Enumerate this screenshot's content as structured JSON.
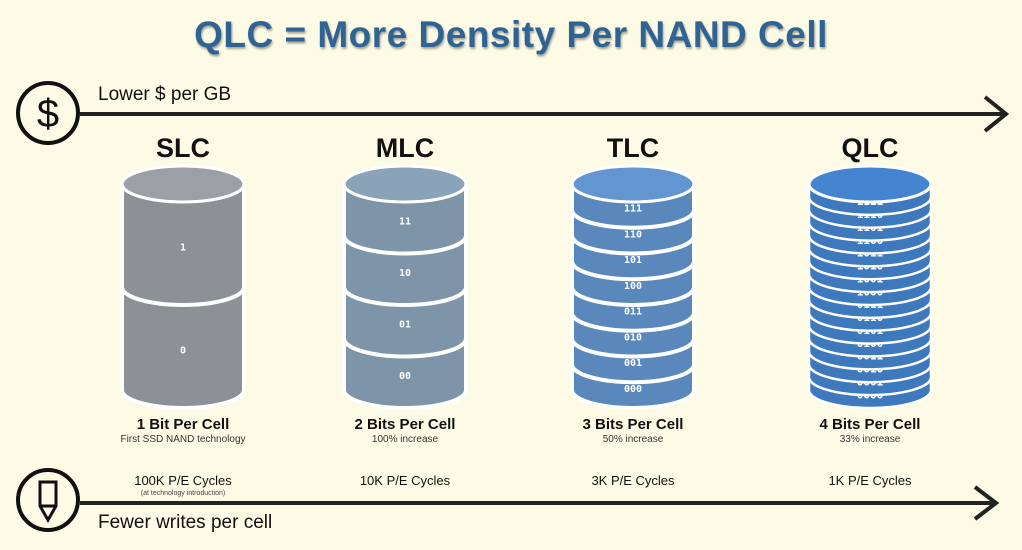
{
  "title": "QLC = More Density Per NAND Cell",
  "top_axis": {
    "label": "Lower $ per GB",
    "icon": "dollar-icon"
  },
  "bottom_axis": {
    "label": "Fewer writes per cell",
    "icon": "pencil-icon"
  },
  "colors": {
    "title": "#2f6393",
    "slc": "#8c9196",
    "mlc": "#7e94a8",
    "tlc": "#5a88bd",
    "qlc": "#3e78bd",
    "background": "#fdfbe6"
  },
  "types": [
    {
      "name": "SLC",
      "bits": [
        "1",
        "0"
      ],
      "bits_label": "1 Bit Per Cell",
      "sub": "First SSD NAND technology",
      "cycles": "100K P/E Cycles",
      "note": "(at technology introduction)"
    },
    {
      "name": "MLC",
      "bits": [
        "11",
        "10",
        "01",
        "00"
      ],
      "bits_label": "2 Bits Per Cell",
      "sub": "100% increase",
      "cycles": "10K P/E Cycles"
    },
    {
      "name": "TLC",
      "bits": [
        "111",
        "110",
        "101",
        "100",
        "011",
        "010",
        "001",
        "000"
      ],
      "bits_label": "3 Bits Per Cell",
      "sub": "50% increase",
      "cycles": "3K P/E Cycles"
    },
    {
      "name": "QLC",
      "bits": [
        "1111",
        "1110",
        "1101",
        "1100",
        "1011",
        "1010",
        "1001",
        "1000",
        "0111",
        "0110",
        "0101",
        "0100",
        "0011",
        "0010",
        "0001",
        "0000"
      ],
      "bits_label": "4 Bits Per Cell",
      "sub": "33% increase",
      "cycles": "1K P/E Cycles"
    }
  ]
}
